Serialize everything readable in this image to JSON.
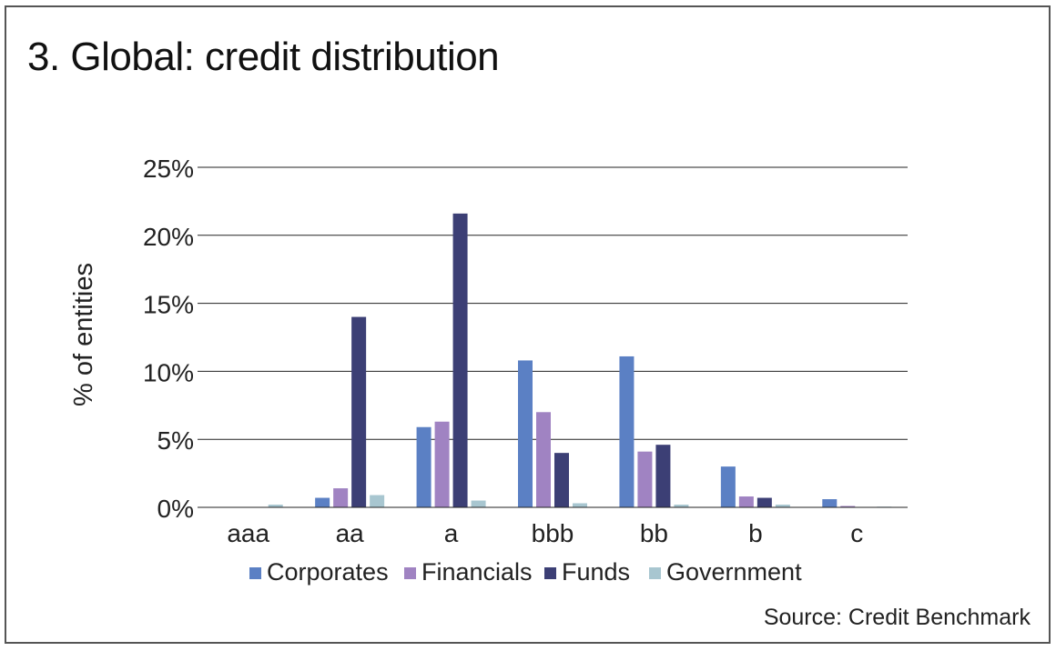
{
  "title": "3. Global: credit distribution",
  "source": "Source: Credit Benchmark",
  "colors": {
    "Corporates": "#5b80c4",
    "Financials": "#a083c2",
    "Funds": "#3c3f75",
    "Government": "#a8c6d0",
    "gridline": "#222222",
    "text": "#222222"
  },
  "chart_data": {
    "type": "bar",
    "ylabel": "% of entities",
    "xlabel": "",
    "ylim": [
      0,
      25
    ],
    "yticks": [
      0,
      5,
      10,
      15,
      20,
      25
    ],
    "ytick_labels": [
      "0%",
      "5%",
      "10%",
      "15%",
      "20%",
      "25%"
    ],
    "grid": true,
    "legend_position": "bottom",
    "categories": [
      "aaa",
      "aa",
      "a",
      "bbb",
      "bb",
      "b",
      "c"
    ],
    "series": [
      {
        "name": "Corporates",
        "values": [
          0.0,
          0.7,
          5.9,
          10.8,
          11.1,
          3.0,
          0.6
        ]
      },
      {
        "name": "Financials",
        "values": [
          0.0,
          1.4,
          6.3,
          7.0,
          4.1,
          0.8,
          0.1
        ]
      },
      {
        "name": "Funds",
        "values": [
          0.0,
          14.0,
          21.6,
          4.0,
          4.6,
          0.7,
          0.0
        ]
      },
      {
        "name": "Government",
        "values": [
          0.2,
          0.9,
          0.5,
          0.3,
          0.2,
          0.2,
          0.05
        ]
      }
    ]
  }
}
